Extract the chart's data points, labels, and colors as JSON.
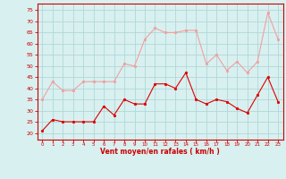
{
  "x": [
    0,
    1,
    2,
    3,
    4,
    5,
    6,
    7,
    8,
    9,
    10,
    11,
    12,
    13,
    14,
    15,
    16,
    17,
    18,
    19,
    20,
    21,
    22,
    23
  ],
  "wind_avg": [
    21,
    26,
    25,
    25,
    25,
    25,
    32,
    28,
    35,
    33,
    33,
    42,
    42,
    40,
    47,
    35,
    33,
    35,
    34,
    31,
    29,
    37,
    45,
    34
  ],
  "wind_gust": [
    35,
    43,
    39,
    39,
    43,
    43,
    43,
    43,
    51,
    50,
    62,
    67,
    65,
    65,
    66,
    66,
    51,
    55,
    48,
    52,
    47,
    52,
    74,
    62
  ],
  "bg_color": "#d9f0f0",
  "grid_color": "#b0d8d8",
  "line_avg_color": "#dd0000",
  "line_gust_color": "#f0a0a0",
  "xlabel": "Vent moyen/en rafales ( km/h )",
  "xlabel_color": "#cc0000",
  "tick_color": "#cc0000",
  "yticks": [
    20,
    25,
    30,
    35,
    40,
    45,
    50,
    55,
    60,
    65,
    70,
    75
  ],
  "ylim": [
    17,
    78
  ],
  "xlim": [
    -0.5,
    23.5
  ]
}
